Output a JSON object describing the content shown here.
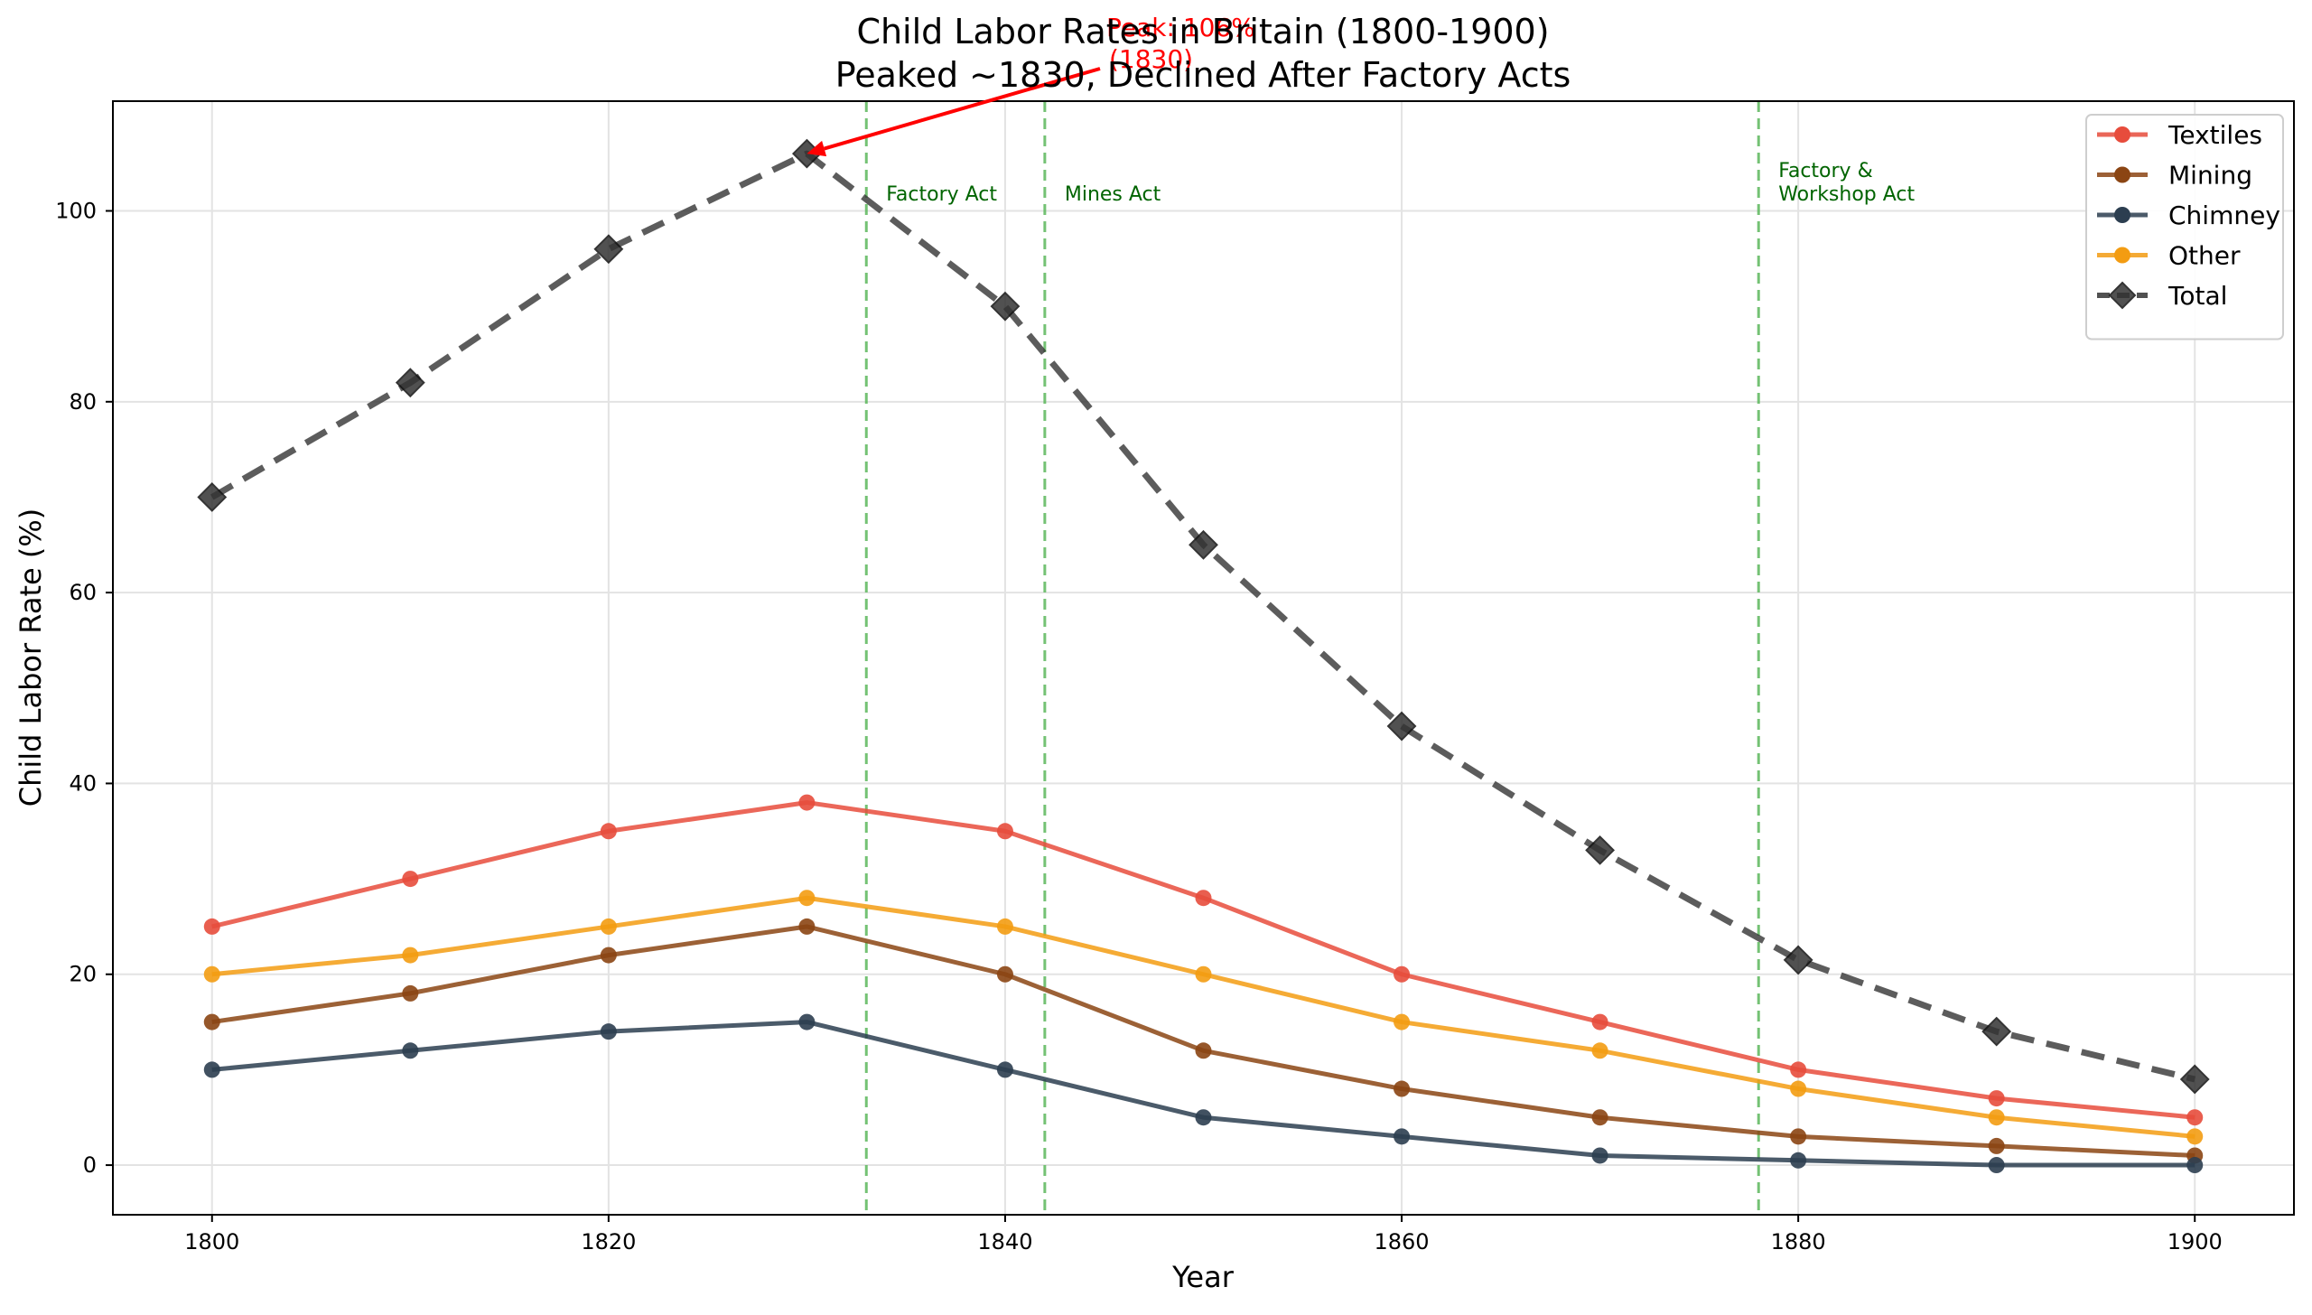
{
  "chart_data": {
    "type": "line",
    "title": "Child Labor Rates in Britain (1800-1900)",
    "subtitle": "Peaked ~1830, Declined After Factory Acts",
    "xlabel": "Year",
    "ylabel": "Child Labor Rate (%)",
    "xlim": [
      1795,
      1905
    ],
    "ylim": [
      -5.2,
      111.5
    ],
    "x_ticks": [
      1800,
      1820,
      1840,
      1860,
      1880,
      1900
    ],
    "y_ticks": [
      0,
      20,
      40,
      60,
      80,
      100
    ],
    "grid": true,
    "legend_position": "top-right",
    "x": [
      1800,
      1810,
      1820,
      1830,
      1840,
      1850,
      1860,
      1870,
      1880,
      1890,
      1900
    ],
    "series": [
      {
        "name": "Textiles",
        "color": "#e74c3c",
        "style": "solid",
        "marker": "circle",
        "values": [
          25,
          30,
          35,
          38,
          35,
          28,
          20,
          15,
          10,
          7,
          5
        ]
      },
      {
        "name": "Mining",
        "color": "#8b4513",
        "style": "solid",
        "marker": "circle",
        "values": [
          15,
          18,
          22,
          25,
          20,
          12,
          8,
          5,
          3,
          2,
          1
        ]
      },
      {
        "name": "Chimney",
        "color": "#2c3e50",
        "style": "solid",
        "marker": "circle",
        "values": [
          10,
          12,
          14,
          15,
          10,
          5,
          3,
          1,
          0.5,
          0,
          0
        ]
      },
      {
        "name": "Other",
        "color": "#f39c12",
        "style": "solid",
        "marker": "circle",
        "values": [
          20,
          22,
          25,
          28,
          25,
          20,
          15,
          12,
          8,
          5,
          3
        ]
      },
      {
        "name": "Total",
        "color": "#333333",
        "style": "dashed",
        "marker": "diamond",
        "values": [
          70,
          82,
          96,
          106,
          90,
          65,
          46,
          33,
          21.5,
          14,
          9
        ]
      }
    ],
    "vertical_lines": [
      {
        "x": 1833,
        "label": "Factory Act"
      },
      {
        "x": 1842,
        "label": "Mines Act"
      },
      {
        "x": 1878,
        "label": "Factory &\nWorkshop Act"
      }
    ],
    "annotation": {
      "text": "Peak: 106%\n(1830)",
      "x": 1830,
      "y": 106,
      "color": "#ff0000"
    }
  }
}
